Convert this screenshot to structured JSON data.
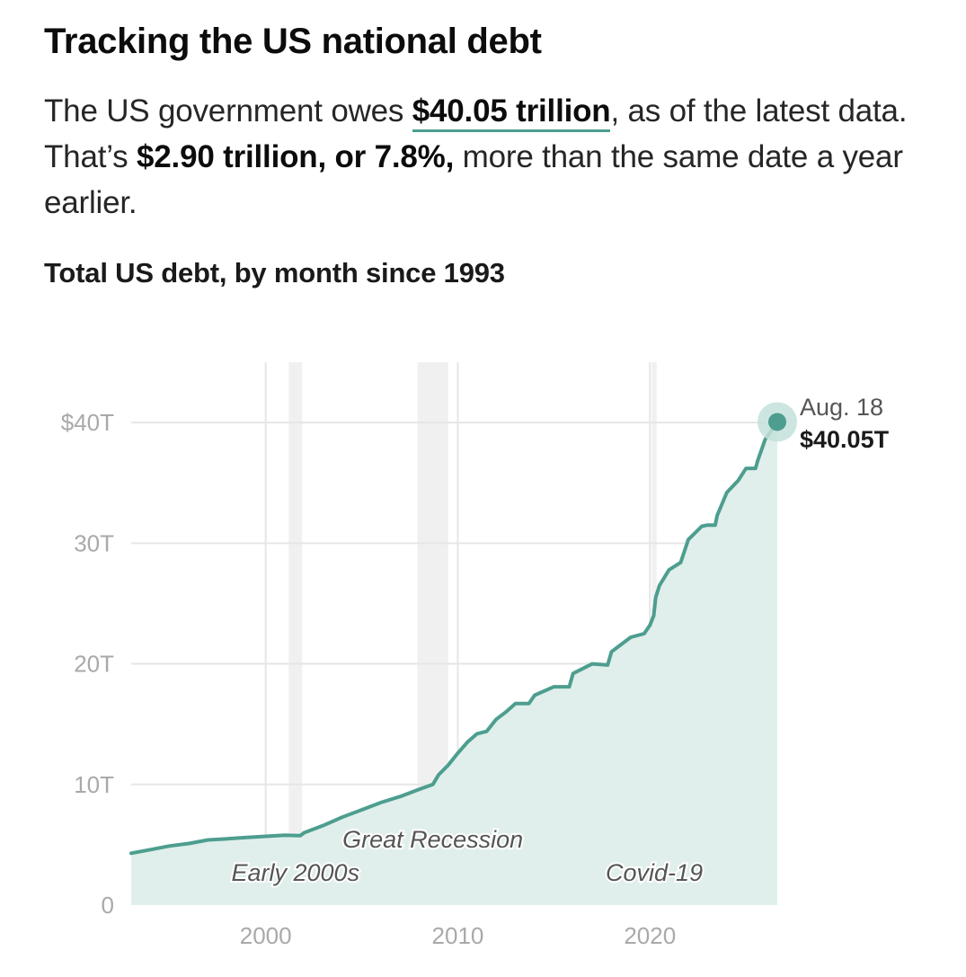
{
  "header": {
    "title": "Tracking the US national debt"
  },
  "summary": {
    "part1": "The US government owes ",
    "debt_amount": "$40.05 trillion",
    "part2": ", as of the latest data. That’s ",
    "change": "$2.90 trillion, or 7.8%,",
    "part3": " more than the same date a year earlier."
  },
  "chart_data": {
    "type": "area",
    "title": "Total US debt, by month since 1993",
    "xlabel": "",
    "ylabel": "",
    "xlim": [
      1993,
      2026.63
    ],
    "ylim": [
      0,
      45
    ],
    "y_ticks": [
      {
        "value": 0,
        "label": "0"
      },
      {
        "value": 10,
        "label": "10T"
      },
      {
        "value": 20,
        "label": "20T"
      },
      {
        "value": 30,
        "label": "30T"
      },
      {
        "value": 40,
        "label": "$40T"
      }
    ],
    "x_ticks": [
      {
        "value": 2000,
        "label": "2000"
      },
      {
        "value": 2010,
        "label": "2010"
      },
      {
        "value": 2020,
        "label": "2020"
      }
    ],
    "grid": true,
    "recessions": [
      {
        "label": "Early 2000s",
        "start": 2001.2,
        "end": 2001.9
      },
      {
        "label": "Great Recession",
        "start": 2007.9,
        "end": 2009.5
      },
      {
        "label": "Covid-19",
        "start": 2020.1,
        "end": 2020.35
      }
    ],
    "series": [
      {
        "name": "Total US debt",
        "unit": "trillion USD",
        "x": [
          1993,
          1994,
          1995,
          1996,
          1997,
          1998,
          1999,
          2000,
          2001,
          2001.8,
          2002,
          2003,
          2004,
          2005,
          2006,
          2007,
          2008,
          2008.7,
          2009,
          2009.5,
          2010,
          2010.5,
          2011,
          2011.5,
          2012,
          2012.5,
          2013,
          2013.7,
          2014,
          2015,
          2015.8,
          2016,
          2017,
          2017.8,
          2018,
          2019,
          2019.7,
          2020,
          2020.2,
          2020.3,
          2020.5,
          2021,
          2021.6,
          2022,
          2022.7,
          2023,
          2023.4,
          2023.5,
          2024,
          2024.6,
          2025,
          2025.5,
          2025.6,
          2026,
          2026.63
        ],
        "values": [
          4.3,
          4.6,
          4.9,
          5.1,
          5.4,
          5.5,
          5.6,
          5.7,
          5.8,
          5.75,
          6.0,
          6.6,
          7.3,
          7.9,
          8.5,
          9.0,
          9.6,
          10.0,
          10.8,
          11.6,
          12.6,
          13.5,
          14.2,
          14.4,
          15.4,
          16.0,
          16.7,
          16.7,
          17.4,
          18.1,
          18.1,
          19.2,
          20.0,
          19.9,
          21.0,
          22.2,
          22.5,
          23.2,
          24.0,
          25.5,
          26.5,
          27.8,
          28.4,
          30.3,
          31.4,
          31.5,
          31.5,
          32.3,
          34.2,
          35.2,
          36.2,
          36.2,
          36.8,
          38.6,
          40.05
        ]
      }
    ],
    "annotation": {
      "date": "Aug. 18",
      "value_label": "$40.05T"
    },
    "colors": {
      "line": "#4d9e8f",
      "area": "#e0efeb",
      "end_dot": "#4d9e8f",
      "end_halo": "#c4e1da",
      "grid": "#e6e6e6",
      "recession_band": "#f0f0f0"
    }
  }
}
